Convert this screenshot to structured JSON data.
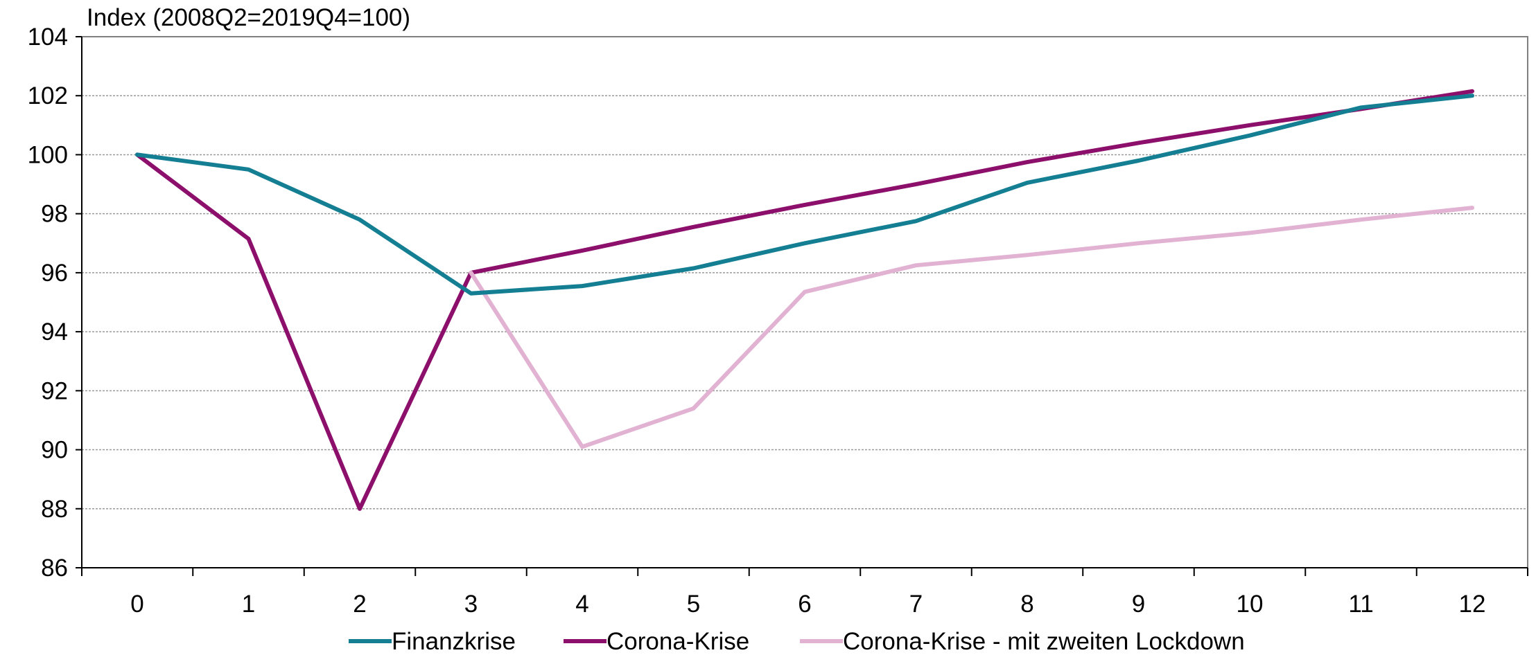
{
  "chart_data": {
    "type": "line",
    "title": "",
    "unit_label": "Index (2008Q2=2019Q4=100)",
    "xlabel": "",
    "ylabel": "",
    "x": [
      0,
      1,
      2,
      3,
      4,
      5,
      6,
      7,
      8,
      9,
      10,
      11,
      12
    ],
    "x_tick_labels": [
      "0",
      "1",
      "2",
      "3",
      "4",
      "5",
      "6",
      "7",
      "8",
      "9",
      "10",
      "11",
      "12"
    ],
    "ylim": [
      86,
      104
    ],
    "y_ticks": [
      86,
      88,
      90,
      92,
      94,
      96,
      98,
      100,
      102,
      104
    ],
    "y_tick_labels": [
      "86",
      "88",
      "90",
      "92",
      "94",
      "96",
      "98",
      "100",
      "102",
      "104"
    ],
    "grid": true,
    "legend_position": "bottom",
    "series": [
      {
        "name": "Finanzkrise",
        "color": "#147E93",
        "x": [
          0,
          1,
          2,
          3,
          4,
          5,
          6,
          7,
          8,
          9,
          10,
          11,
          12
        ],
        "values": [
          100.0,
          99.5,
          97.8,
          95.3,
          95.55,
          96.15,
          97.0,
          97.75,
          99.05,
          99.8,
          100.65,
          101.6,
          102.0
        ]
      },
      {
        "name": "Corona-Krise",
        "color": "#8C0F6B",
        "x": [
          0,
          1,
          2,
          3,
          4,
          5,
          6,
          7,
          8,
          9,
          10,
          11,
          12
        ],
        "values": [
          100.0,
          97.15,
          88.0,
          96.0,
          96.75,
          97.55,
          98.3,
          99.0,
          99.75,
          100.4,
          101.0,
          101.55,
          102.15
        ]
      },
      {
        "name": "Corona-Krise - mit zweiten Lockdown",
        "color": "#E2B2D3",
        "x": [
          3,
          4,
          5,
          6,
          7,
          8,
          9,
          10,
          11,
          12
        ],
        "values": [
          96.0,
          90.1,
          91.4,
          95.35,
          96.25,
          96.6,
          97.0,
          97.35,
          97.8,
          98.2
        ]
      }
    ]
  }
}
